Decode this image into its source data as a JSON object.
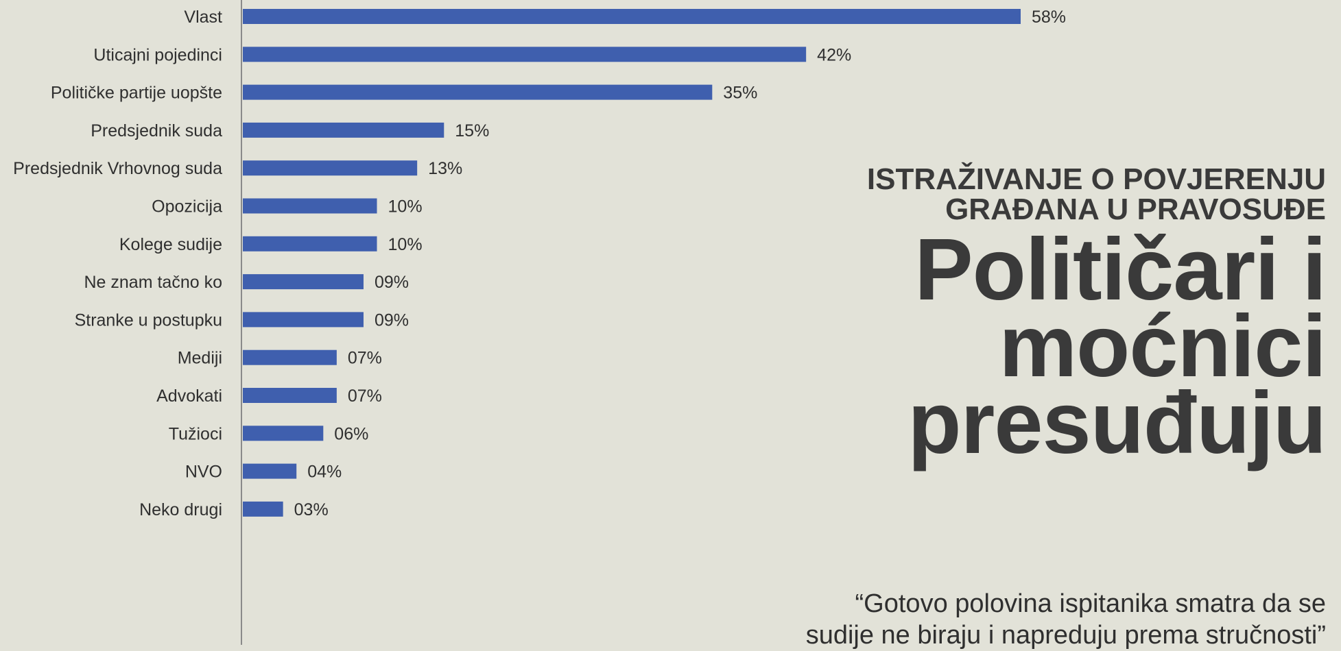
{
  "chart_data": {
    "type": "bar",
    "orientation": "horizontal",
    "categories": [
      "Vlast",
      "Uticajni pojedinci",
      "Političke partije uopšte",
      "Predsjednik suda",
      "Predsjednik Vrhovnog suda",
      "Opozicija",
      "Kolege sudije",
      "Ne znam tačno ko",
      "Stranke u postupku",
      "Mediji",
      "Advokati",
      "Tužioci",
      "NVO",
      "Neko drugi"
    ],
    "values": [
      58,
      42,
      35,
      15,
      13,
      10,
      10,
      9,
      9,
      7,
      7,
      6,
      4,
      3
    ],
    "value_labels": [
      "58%",
      "42%",
      "35%",
      "15%",
      "13%",
      "10%",
      "10%",
      "09%",
      "09%",
      "07%",
      "07%",
      "06%",
      "04%",
      "03%"
    ],
    "xlim": [
      0,
      58
    ],
    "bar_color": "#3f5fae",
    "grid": false
  },
  "article": {
    "kicker_lines": [
      "ISTRAŽIVANJE O POVJERENJU",
      "GRAĐANA U PRAVOSUĐE"
    ],
    "headline_lines": [
      "Političari i",
      "moćnici",
      "presuđuju"
    ],
    "quote_lines": [
      "“Gotovo polovina ispitanika smatra da se",
      "sudije ne biraju i napreduju prema stručnosti”"
    ]
  },
  "colors": {
    "background": "#e2e2d8",
    "text": "#2f2f2f",
    "headline": "#3a3a3a",
    "axis": "#8a8a8a"
  }
}
